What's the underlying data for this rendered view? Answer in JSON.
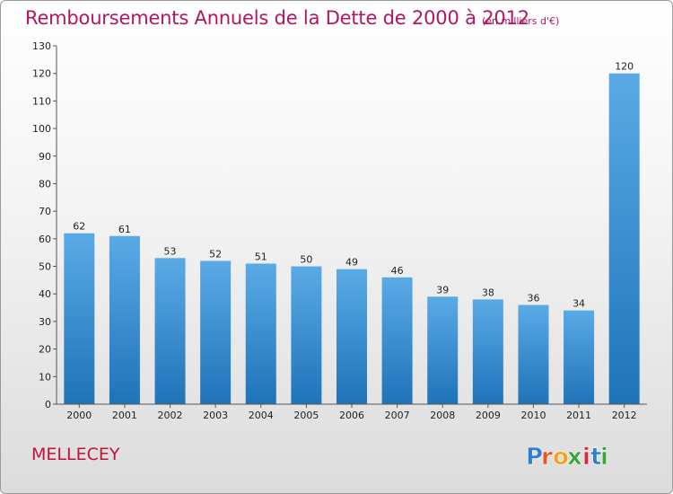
{
  "chart_data": {
    "type": "bar",
    "title": "Remboursements Annuels de la Dette de 2000 à 2012",
    "subtitle": "(en milliers d'€)",
    "categories": [
      "2000",
      "2001",
      "2002",
      "2003",
      "2004",
      "2005",
      "2006",
      "2007",
      "2008",
      "2009",
      "2010",
      "2011",
      "2012"
    ],
    "values": [
      62,
      61,
      53,
      52,
      51,
      50,
      49,
      46,
      39,
      38,
      36,
      34,
      120
    ],
    "data_labels": [
      "62",
      "61",
      "53",
      "52",
      "51",
      "50",
      "49",
      "46",
      "39",
      "38",
      "36",
      "34",
      "120"
    ],
    "ylim": [
      0,
      130
    ],
    "yticks": [
      0,
      10,
      20,
      30,
      40,
      50,
      60,
      70,
      80,
      90,
      100,
      110,
      120,
      130
    ],
    "ytick_labels": [
      "0",
      "10",
      "20",
      "30",
      "40",
      "50",
      "60",
      "70",
      "80",
      "90",
      "100",
      "110",
      "120",
      "130"
    ],
    "grid": false,
    "bar_color_top": "#5aaae6",
    "bar_color_bottom": "#1f73b8"
  },
  "footer": {
    "commune": "MELLECEY",
    "brand": "Proxiti",
    "brand_letters": [
      "P",
      "r",
      "o",
      "x",
      "i",
      "t",
      "i"
    ],
    "brand_colors": [
      "#2f7fd1",
      "#e8541c",
      "#f3a11a",
      "#3aa43a",
      "#d7263d",
      "#2f7fd1",
      "#3aa43a"
    ]
  },
  "colors": {
    "title": "#b5155f",
    "axis": "#555555"
  }
}
